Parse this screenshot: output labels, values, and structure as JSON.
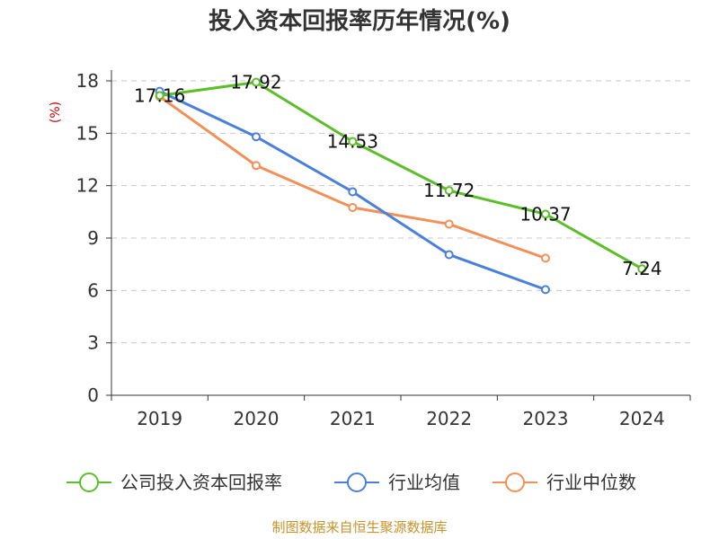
{
  "chart_data": {
    "type": "line",
    "title": "投入资本回报率历年情况(%)",
    "ylabel": "(%)",
    "xlabel": "",
    "ylim": [
      0,
      18
    ],
    "yticks": [
      0,
      3,
      6,
      9,
      12,
      15,
      18
    ],
    "categories": [
      "2019",
      "2020",
      "2021",
      "2022",
      "2023",
      "2024"
    ],
    "grid": "horizontal dashed",
    "legend_position": "bottom",
    "series": [
      {
        "name": "公司投入资本回报率",
        "color": "#5cbf2a",
        "values": [
          17.16,
          17.92,
          14.53,
          11.72,
          10.37,
          7.24
        ],
        "labels": [
          "17.16",
          "17.92",
          "14.53",
          "11.72",
          "10.37",
          "7.24"
        ]
      },
      {
        "name": "行业均值",
        "color": "#4a7fdc",
        "values": [
          17.4,
          14.8,
          11.65,
          8.05,
          6.05,
          null
        ],
        "labels": []
      },
      {
        "name": "行业中位数",
        "color": "#f39058",
        "values": [
          17.1,
          13.15,
          10.75,
          9.8,
          7.85,
          null
        ],
        "labels": []
      }
    ]
  },
  "source": "制图数据来自恒生聚源数据库"
}
